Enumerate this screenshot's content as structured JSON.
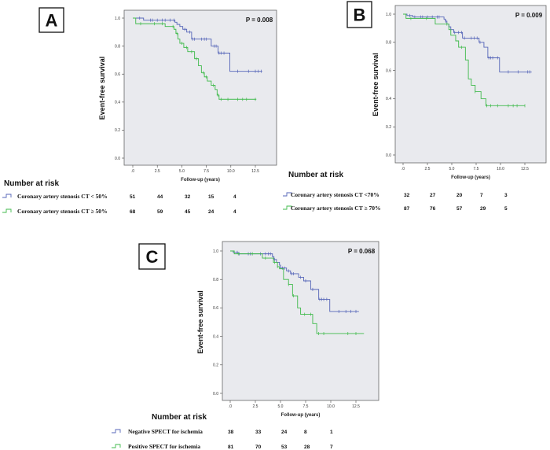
{
  "colors": {
    "blue": "#5565b8",
    "green": "#3fba4b",
    "plot_bg": "#e9eaee"
  },
  "chart_data": [
    {
      "type": "line",
      "panel": "A",
      "p_value": "P = 0.008",
      "xlabel": "Follow-up (years)",
      "ylabel": "Event-free survival",
      "xlim": [
        0,
        13.5
      ],
      "ylim": [
        0,
        1.0
      ],
      "xticks": [
        ".0",
        "2.5",
        "5.0",
        "7.5",
        "10.0",
        "12.5"
      ],
      "yticks": [
        "0.0",
        "0.2",
        "0.4",
        "0.6",
        "0.8",
        "1.0"
      ],
      "risk_title": "Number at risk",
      "series": [
        {
          "name": "Coronary artery stenosis CT < 50%",
          "color": "blue",
          "steps": [
            [
              0,
              1.0
            ],
            [
              1.1,
              0.985
            ],
            [
              4.3,
              0.97
            ],
            [
              4.5,
              0.955
            ],
            [
              4.8,
              0.94
            ],
            [
              5.1,
              0.92
            ],
            [
              5.5,
              0.9
            ],
            [
              6.0,
              0.85
            ],
            [
              8.0,
              0.8
            ],
            [
              8.7,
              0.75
            ],
            [
              9.9,
              0.62
            ]
          ],
          "end": 13.2,
          "censored": [
            0.7,
            1.8,
            2.0,
            2.5,
            3.0,
            3.3,
            3.8,
            4.2,
            5.3,
            5.8,
            6.1,
            6.3,
            7.0,
            7.3,
            7.5,
            8.3,
            8.5,
            8.8,
            9.0,
            9.3,
            10.7,
            11.8,
            12.5,
            12.8,
            13.1
          ],
          "at_risk": [
            "51",
            "44",
            "32",
            "15",
            "4"
          ]
        },
        {
          "name": "Coronary artery stenosis CT ≥ 50%",
          "color": "green",
          "steps": [
            [
              0,
              1.0
            ],
            [
              0.3,
              0.96
            ],
            [
              3.3,
              0.94
            ],
            [
              4.2,
              0.92
            ],
            [
              4.4,
              0.89
            ],
            [
              4.6,
              0.85
            ],
            [
              4.8,
              0.82
            ],
            [
              5.2,
              0.79
            ],
            [
              5.6,
              0.76
            ],
            [
              6.3,
              0.71
            ],
            [
              6.7,
              0.66
            ],
            [
              7.0,
              0.61
            ],
            [
              7.3,
              0.58
            ],
            [
              7.6,
              0.55
            ],
            [
              8.0,
              0.52
            ],
            [
              8.4,
              0.49
            ],
            [
              8.6,
              0.45
            ],
            [
              8.8,
              0.42
            ]
          ],
          "end": 12.6,
          "censored": [
            0.8,
            2.2,
            3.0,
            4.1,
            4.5,
            5.0,
            5.5,
            6.0,
            6.5,
            7.2,
            7.5,
            8.2,
            8.7,
            9.0,
            9.7,
            10.7,
            11.2,
            11.6,
            12.5
          ],
          "at_risk": [
            "68",
            "59",
            "45",
            "24",
            "4"
          ]
        }
      ]
    },
    {
      "type": "line",
      "panel": "B",
      "p_value": "P = 0.009",
      "xlabel": "Follow-up (years)",
      "ylabel": "Event-free survival",
      "xlim": [
        0,
        13.5
      ],
      "ylim": [
        0,
        1.0
      ],
      "xticks": [
        ".0",
        "2.5",
        "5.0",
        "7.5",
        "10.0",
        "12.5"
      ],
      "yticks": [
        "0.0",
        "0.2",
        "0.4",
        "0.6",
        "0.8",
        "1.0"
      ],
      "risk_title": "Number at risk",
      "series": [
        {
          "name": "Coronary artery stenosis CT <70%",
          "color": "blue",
          "steps": [
            [
              0,
              1.0
            ],
            [
              0.4,
              0.99
            ],
            [
              1.0,
              0.98
            ],
            [
              4.2,
              0.965
            ],
            [
              4.35,
              0.95
            ],
            [
              4.5,
              0.93
            ],
            [
              4.7,
              0.91
            ],
            [
              4.9,
              0.89
            ],
            [
              5.2,
              0.87
            ],
            [
              6.1,
              0.83
            ],
            [
              7.8,
              0.8
            ],
            [
              8.3,
              0.765
            ],
            [
              8.7,
              0.69
            ],
            [
              9.9,
              0.59
            ]
          ],
          "end": 13.2,
          "censored": [
            0.7,
            1.2,
            1.8,
            2.0,
            2.5,
            3.0,
            3.5,
            3.7,
            4.4,
            5.3,
            5.7,
            6.0,
            6.3,
            7.0,
            7.3,
            7.6,
            7.9,
            8.8,
            9.0,
            9.2,
            9.7,
            10.8,
            11.8,
            12.8,
            13.0
          ],
          "at_risk": [
            "32",
            "27",
            "20",
            "7",
            "3"
          ]
        },
        {
          "name": "Coronary artery stenosis CT ≥ 70%",
          "color": "green",
          "steps": [
            [
              0,
              1.0
            ],
            [
              0.3,
              0.97
            ],
            [
              3.3,
              0.93
            ],
            [
              4.7,
              0.89
            ],
            [
              4.9,
              0.85
            ],
            [
              5.4,
              0.81
            ],
            [
              5.7,
              0.765
            ],
            [
              6.4,
              0.675
            ],
            [
              6.7,
              0.54
            ],
            [
              7.0,
              0.495
            ],
            [
              7.4,
              0.45
            ],
            [
              8.0,
              0.4
            ],
            [
              8.5,
              0.35
            ]
          ],
          "end": 12.5,
          "censored": [
            0.8,
            2.4,
            4.5,
            6.0,
            7.4,
            8.6,
            9.0,
            9.7,
            10.8,
            11.3,
            11.7,
            12.5
          ],
          "at_risk": [
            "87",
            "76",
            "57",
            "29",
            "5"
          ]
        }
      ]
    },
    {
      "type": "line",
      "panel": "C",
      "p_value": "P = 0.068",
      "xlabel": "Follow-up (years)",
      "ylabel": "Event-free survival",
      "xlim": [
        0,
        13.5
      ],
      "ylim": [
        0,
        1.0
      ],
      "xticks": [
        ".0",
        "2.5",
        "5.0",
        "7.5",
        "10.0",
        "12.5"
      ],
      "yticks": [
        "0.0",
        "0.2",
        "0.4",
        "0.6",
        "0.8",
        "1.0"
      ],
      "risk_title": "Number at risk",
      "series": [
        {
          "name": "Negative SPECT for ischemia",
          "color": "blue",
          "steps": [
            [
              0,
              1.0
            ],
            [
              0.3,
              0.99
            ],
            [
              0.8,
              0.98
            ],
            [
              4.2,
              0.96
            ],
            [
              4.35,
              0.94
            ],
            [
              4.6,
              0.92
            ],
            [
              4.9,
              0.9
            ],
            [
              5.0,
              0.88
            ],
            [
              5.6,
              0.86
            ],
            [
              6.0,
              0.84
            ],
            [
              6.8,
              0.815
            ],
            [
              7.3,
              0.79
            ],
            [
              8.0,
              0.73
            ],
            [
              8.8,
              0.66
            ],
            [
              9.9,
              0.575
            ]
          ],
          "end": 12.8,
          "censored": [
            0.7,
            0.9,
            1.8,
            2.0,
            2.2,
            3.0,
            3.5,
            3.8,
            4.0,
            4.4,
            5.2,
            5.4,
            5.8,
            6.1,
            6.3,
            7.0,
            7.5,
            8.2,
            8.9,
            9.1,
            9.3,
            9.6,
            10.8,
            11.5,
            12.0,
            12.5
          ],
          "at_risk": [
            "38",
            "33",
            "24",
            "8",
            "1"
          ]
        },
        {
          "name": "Positive SPECT for ischemia",
          "color": "green",
          "steps": [
            [
              0,
              1.0
            ],
            [
              0.4,
              0.98
            ],
            [
              3.2,
              0.95
            ],
            [
              4.3,
              0.92
            ],
            [
              4.7,
              0.89
            ],
            [
              4.9,
              0.875
            ],
            [
              5.3,
              0.8
            ],
            [
              5.8,
              0.765
            ],
            [
              6.2,
              0.685
            ],
            [
              6.7,
              0.6
            ],
            [
              7.0,
              0.555
            ],
            [
              8.2,
              0.49
            ],
            [
              8.6,
              0.42
            ]
          ],
          "end": 13.3,
          "censored": [
            0.8,
            2.2,
            3.5,
            4.4,
            4.7,
            5.8,
            6.3,
            7.4,
            8.0,
            8.8,
            9.3,
            11.7,
            12.5
          ],
          "at_risk": [
            "81",
            "70",
            "53",
            "28",
            "7"
          ]
        }
      ]
    }
  ]
}
